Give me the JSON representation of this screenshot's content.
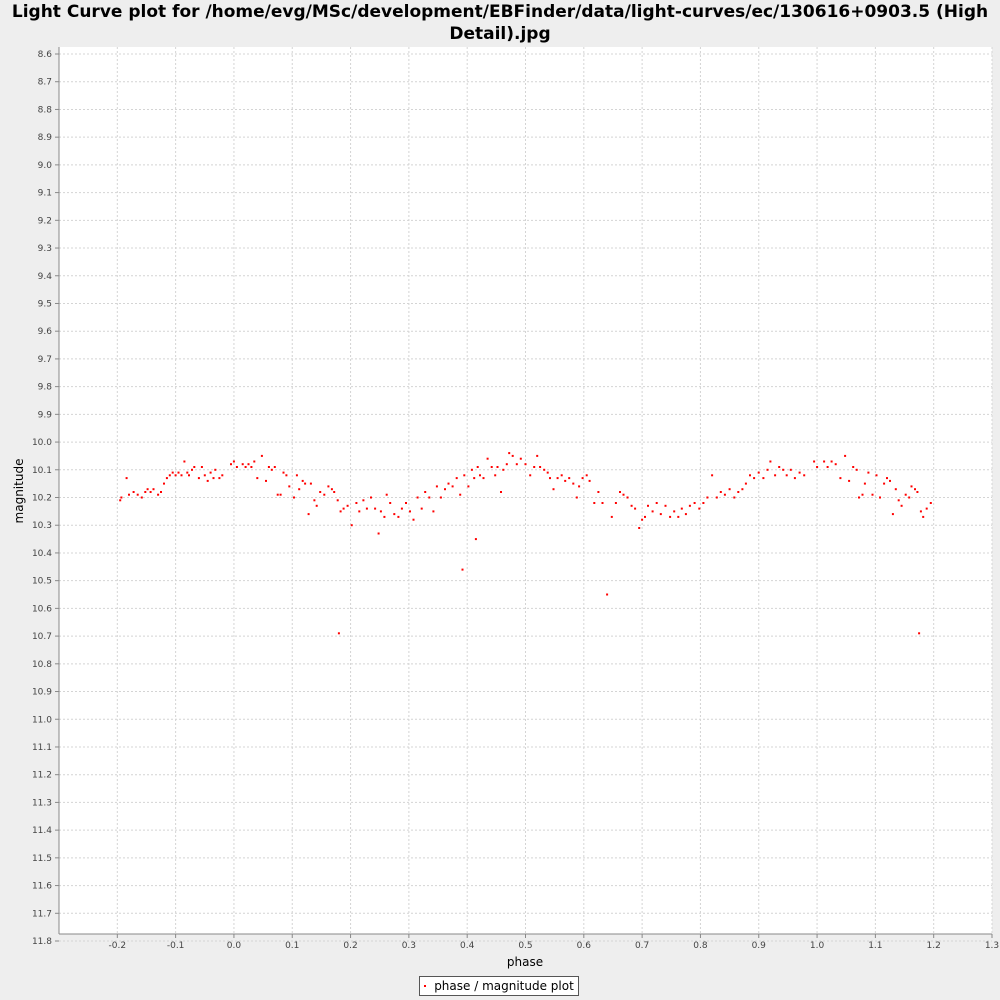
{
  "title_line1": "Light Curve plot for /home/evg/MSc/development/EBFinder/data/light-curves/ec/130616+0903.5 (High",
  "title_line2": "Detail).jpg",
  "legend_label": "phase / magnitude plot",
  "colors": {
    "series": "#ff0000",
    "plot_bg": "#ffffff",
    "grid": "#d4d4d4",
    "page_bg": "#eeeeee"
  },
  "chart_data": {
    "type": "scatter",
    "title": "Light Curve plot for /home/evg/MSc/development/EBFinder/data/light-curves/ec/130616+0903.5 (High Detail).jpg",
    "xlabel": "phase",
    "ylabel": "magnitude",
    "xlim": [
      -0.3,
      1.3
    ],
    "ylim": [
      8.6,
      11.8
    ],
    "y_inverted": true,
    "grid": true,
    "legend_placement": "bottom-center",
    "x_ticks": [
      "-0.2",
      "-0.1",
      "0.0",
      "0.1",
      "0.2",
      "0.3",
      "0.4",
      "0.5",
      "0.6",
      "0.7",
      "0.8",
      "0.9",
      "1.0",
      "1.1",
      "1.2",
      "1.3"
    ],
    "y_ticks": [
      "8.6",
      "8.7",
      "8.8",
      "8.9",
      "9.0",
      "9.1",
      "9.2",
      "9.3",
      "9.4",
      "9.5",
      "9.6",
      "9.7",
      "9.8",
      "9.9",
      "10.0",
      "10.1",
      "10.2",
      "10.3",
      "10.4",
      "10.5",
      "10.6",
      "10.7",
      "10.8",
      "10.9",
      "11.0",
      "11.1",
      "11.2",
      "11.3",
      "11.4",
      "11.5",
      "11.6",
      "11.7",
      "11.8"
    ],
    "series": [
      {
        "name": "phase / magnitude plot",
        "points": [
          [
            -0.195,
            10.21
          ],
          [
            -0.193,
            10.2
          ],
          [
            -0.184,
            10.13
          ],
          [
            -0.18,
            10.19
          ],
          [
            -0.172,
            10.18
          ],
          [
            -0.165,
            10.19
          ],
          [
            -0.158,
            10.2
          ],
          [
            -0.152,
            10.18
          ],
          [
            -0.148,
            10.17
          ],
          [
            -0.143,
            10.18
          ],
          [
            -0.138,
            10.17
          ],
          [
            -0.13,
            10.19
          ],
          [
            -0.125,
            10.18
          ],
          [
            -0.12,
            10.15
          ],
          [
            -0.115,
            10.13
          ],
          [
            -0.11,
            10.12
          ],
          [
            -0.105,
            10.11
          ],
          [
            -0.1,
            10.12
          ],
          [
            -0.095,
            10.11
          ],
          [
            -0.09,
            10.12
          ],
          [
            -0.085,
            10.07
          ],
          [
            -0.08,
            10.11
          ],
          [
            -0.077,
            10.12
          ],
          [
            -0.072,
            10.1
          ],
          [
            -0.068,
            10.09
          ],
          [
            -0.06,
            10.13
          ],
          [
            -0.055,
            10.09
          ],
          [
            -0.05,
            10.12
          ],
          [
            -0.045,
            10.14
          ],
          [
            -0.04,
            10.11
          ],
          [
            -0.035,
            10.13
          ],
          [
            -0.032,
            10.1
          ],
          [
            -0.025,
            10.13
          ],
          [
            -0.02,
            10.12
          ],
          [
            -0.005,
            10.08
          ],
          [
            0.0,
            10.07
          ],
          [
            0.005,
            10.09
          ],
          [
            0.015,
            10.08
          ],
          [
            0.02,
            10.09
          ],
          [
            0.025,
            10.08
          ],
          [
            0.03,
            10.09
          ],
          [
            0.035,
            10.07
          ],
          [
            0.04,
            10.13
          ],
          [
            0.048,
            10.05
          ],
          [
            0.055,
            10.14
          ],
          [
            0.06,
            10.09
          ],
          [
            0.065,
            10.1
          ],
          [
            0.07,
            10.09
          ],
          [
            0.075,
            10.19
          ],
          [
            0.08,
            10.19
          ],
          [
            0.085,
            10.11
          ],
          [
            0.09,
            10.12
          ],
          [
            0.095,
            10.16
          ],
          [
            0.103,
            10.2
          ],
          [
            0.108,
            10.12
          ],
          [
            0.112,
            10.17
          ],
          [
            0.118,
            10.14
          ],
          [
            0.122,
            10.15
          ],
          [
            0.128,
            10.26
          ],
          [
            0.132,
            10.15
          ],
          [
            0.138,
            10.21
          ],
          [
            0.142,
            10.23
          ],
          [
            0.148,
            10.18
          ],
          [
            0.155,
            10.19
          ],
          [
            0.162,
            10.16
          ],
          [
            0.168,
            10.17
          ],
          [
            0.172,
            10.18
          ],
          [
            0.178,
            10.21
          ],
          [
            0.18,
            10.69
          ],
          [
            0.183,
            10.25
          ],
          [
            0.188,
            10.24
          ],
          [
            0.195,
            10.23
          ],
          [
            0.202,
            10.3
          ],
          [
            0.21,
            10.22
          ],
          [
            0.215,
            10.25
          ],
          [
            0.222,
            10.21
          ],
          [
            0.228,
            10.24
          ],
          [
            0.235,
            10.2
          ],
          [
            0.242,
            10.24
          ],
          [
            0.248,
            10.33
          ],
          [
            0.252,
            10.25
          ],
          [
            0.258,
            10.27
          ],
          [
            0.262,
            10.19
          ],
          [
            0.268,
            10.22
          ],
          [
            0.275,
            10.26
          ],
          [
            0.282,
            10.27
          ],
          [
            0.288,
            10.24
          ],
          [
            0.295,
            10.22
          ],
          [
            0.302,
            10.25
          ],
          [
            0.308,
            10.28
          ],
          [
            0.315,
            10.2
          ],
          [
            0.322,
            10.24
          ],
          [
            0.328,
            10.18
          ],
          [
            0.335,
            10.2
          ],
          [
            0.342,
            10.25
          ],
          [
            0.348,
            10.16
          ],
          [
            0.355,
            10.2
          ],
          [
            0.362,
            10.17
          ],
          [
            0.368,
            10.15
          ],
          [
            0.375,
            10.16
          ],
          [
            0.382,
            10.13
          ],
          [
            0.388,
            10.19
          ],
          [
            0.392,
            10.46
          ],
          [
            0.395,
            10.12
          ],
          [
            0.402,
            10.16
          ],
          [
            0.408,
            10.1
          ],
          [
            0.412,
            10.13
          ],
          [
            0.415,
            10.35
          ],
          [
            0.418,
            10.09
          ],
          [
            0.422,
            10.12
          ],
          [
            0.428,
            10.13
          ],
          [
            0.435,
            10.06
          ],
          [
            0.442,
            10.09
          ],
          [
            0.448,
            10.12
          ],
          [
            0.452,
            10.09
          ],
          [
            0.458,
            10.18
          ],
          [
            0.462,
            10.1
          ],
          [
            0.468,
            10.08
          ],
          [
            0.472,
            10.04
          ],
          [
            0.478,
            10.05
          ],
          [
            0.485,
            10.08
          ],
          [
            0.492,
            10.06
          ],
          [
            0.5,
            10.08
          ],
          [
            0.508,
            10.12
          ],
          [
            0.515,
            10.09
          ],
          [
            0.52,
            10.05
          ],
          [
            0.525,
            10.09
          ],
          [
            0.532,
            10.1
          ],
          [
            0.538,
            10.11
          ],
          [
            0.542,
            10.13
          ],
          [
            0.548,
            10.17
          ],
          [
            0.555,
            10.13
          ],
          [
            0.562,
            10.12
          ],
          [
            0.568,
            10.14
          ],
          [
            0.575,
            10.13
          ],
          [
            0.582,
            10.15
          ],
          [
            0.588,
            10.2
          ],
          [
            0.592,
            10.16
          ],
          [
            0.598,
            10.13
          ],
          [
            0.605,
            10.12
          ],
          [
            0.61,
            10.14
          ],
          [
            0.618,
            10.22
          ],
          [
            0.625,
            10.18
          ],
          [
            0.632,
            10.22
          ],
          [
            0.64,
            10.55
          ],
          [
            0.648,
            10.27
          ],
          [
            0.655,
            10.22
          ],
          [
            0.662,
            10.18
          ],
          [
            0.668,
            10.19
          ],
          [
            0.675,
            10.2
          ],
          [
            0.682,
            10.23
          ],
          [
            0.688,
            10.24
          ],
          [
            0.695,
            10.31
          ],
          [
            0.7,
            10.28
          ],
          [
            0.705,
            10.27
          ],
          [
            0.71,
            10.23
          ],
          [
            0.718,
            10.25
          ],
          [
            0.725,
            10.22
          ],
          [
            0.732,
            10.26
          ],
          [
            0.74,
            10.23
          ],
          [
            0.748,
            10.27
          ],
          [
            0.755,
            10.25
          ],
          [
            0.762,
            10.27
          ],
          [
            0.768,
            10.24
          ],
          [
            0.775,
            10.26
          ],
          [
            0.782,
            10.23
          ],
          [
            0.79,
            10.22
          ],
          [
            0.798,
            10.24
          ],
          [
            0.805,
            10.22
          ],
          [
            0.812,
            10.2
          ],
          [
            0.82,
            10.12
          ],
          [
            0.828,
            10.2
          ],
          [
            0.835,
            10.18
          ],
          [
            0.842,
            10.19
          ],
          [
            0.85,
            10.17
          ],
          [
            0.858,
            10.2
          ],
          [
            0.865,
            10.18
          ],
          [
            0.872,
            10.17
          ],
          [
            0.878,
            10.15
          ],
          [
            0.885,
            10.12
          ],
          [
            0.892,
            10.13
          ],
          [
            0.9,
            10.11
          ],
          [
            0.908,
            10.13
          ],
          [
            0.915,
            10.1
          ],
          [
            0.92,
            10.07
          ],
          [
            0.928,
            10.12
          ],
          [
            0.935,
            10.09
          ],
          [
            0.942,
            10.1
          ],
          [
            0.948,
            10.12
          ],
          [
            0.955,
            10.1
          ],
          [
            0.962,
            10.13
          ],
          [
            0.97,
            10.11
          ],
          [
            0.978,
            10.12
          ],
          [
            0.995,
            10.07
          ],
          [
            1.0,
            10.09
          ],
          [
            1.012,
            10.07
          ],
          [
            1.018,
            10.09
          ],
          [
            1.025,
            10.07
          ],
          [
            1.032,
            10.08
          ],
          [
            1.04,
            10.13
          ],
          [
            1.048,
            10.05
          ],
          [
            1.055,
            10.14
          ],
          [
            1.062,
            10.09
          ],
          [
            1.068,
            10.1
          ],
          [
            1.072,
            10.2
          ],
          [
            1.078,
            10.19
          ],
          [
            1.082,
            10.15
          ],
          [
            1.088,
            10.11
          ],
          [
            1.095,
            10.19
          ],
          [
            1.102,
            10.12
          ],
          [
            1.108,
            10.2
          ],
          [
            1.115,
            10.15
          ],
          [
            1.12,
            10.13
          ],
          [
            1.125,
            10.14
          ],
          [
            1.13,
            10.26
          ],
          [
            1.135,
            10.17
          ],
          [
            1.14,
            10.21
          ],
          [
            1.145,
            10.23
          ],
          [
            1.152,
            10.19
          ],
          [
            1.158,
            10.2
          ],
          [
            1.162,
            10.16
          ],
          [
            1.168,
            10.17
          ],
          [
            1.172,
            10.18
          ],
          [
            1.175,
            10.69
          ],
          [
            1.178,
            10.25
          ],
          [
            1.182,
            10.27
          ],
          [
            1.188,
            10.24
          ],
          [
            1.195,
            10.22
          ]
        ]
      }
    ]
  }
}
